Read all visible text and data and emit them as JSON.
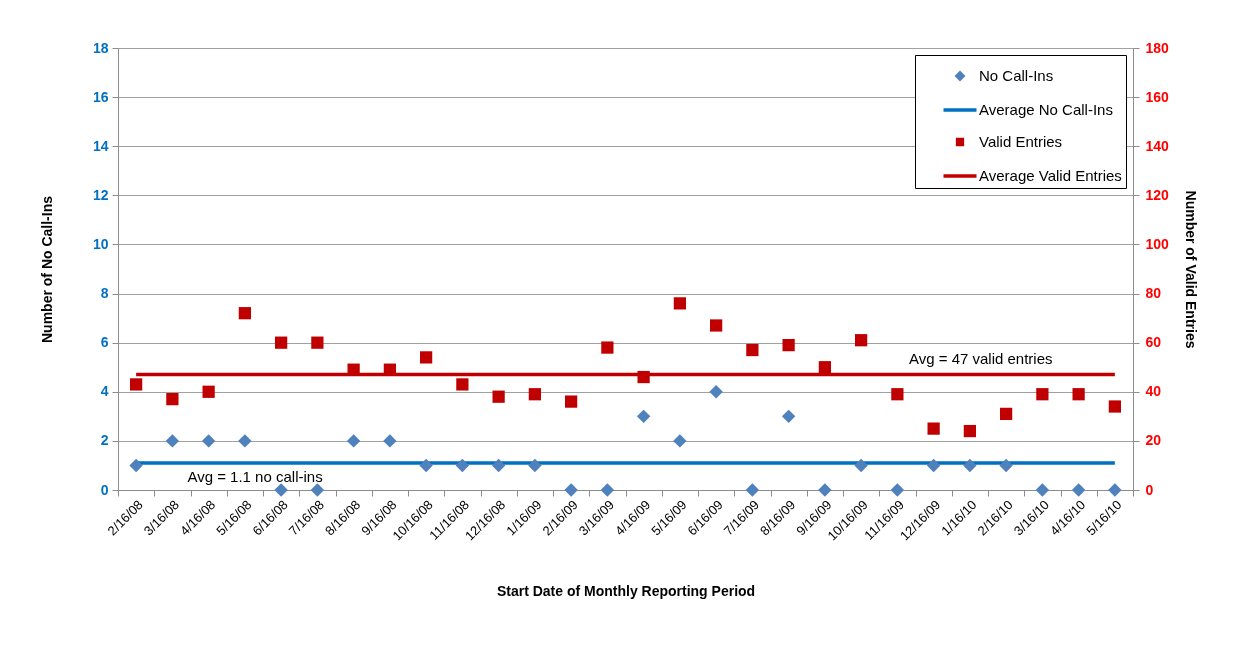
{
  "chart_data": {
    "type": "scatter",
    "categories": [
      "2/16/08",
      "3/16/08",
      "4/16/08",
      "5/16/08",
      "6/16/08",
      "7/16/08",
      "8/16/08",
      "9/16/08",
      "10/16/08",
      "11/16/08",
      "12/16/08",
      "1/16/09",
      "2/16/09",
      "3/16/09",
      "4/16/09",
      "5/16/09",
      "6/16/09",
      "7/16/09",
      "8/16/09",
      "9/16/09",
      "10/16/09",
      "11/16/09",
      "12/16/09",
      "1/16/10",
      "2/16/10",
      "3/16/10",
      "4/16/10",
      "5/16/10"
    ],
    "series": [
      {
        "name": "No Call-Ins",
        "marker": "diamond",
        "color": "#4f81bd",
        "values": [
          1,
          2,
          2,
          2,
          0,
          0,
          2,
          2,
          1,
          1,
          1,
          1,
          0,
          0,
          3,
          2,
          4,
          0,
          3,
          0,
          1,
          0,
          1,
          1,
          1,
          0,
          0,
          0
        ]
      },
      {
        "name": "Average No Call-Ins",
        "type": "line",
        "marker": "none",
        "line_style": "solid",
        "color": "#0070c0",
        "values": [
          1.1,
          1.1,
          1.1,
          1.1,
          1.1,
          1.1,
          1.1,
          1.1,
          1.1,
          1.1,
          1.1,
          1.1,
          1.1,
          1.1,
          1.1,
          1.1,
          1.1,
          1.1,
          1.1,
          1.1,
          1.1,
          1.1,
          1.1,
          1.1,
          1.1,
          1.1,
          1.1,
          1.1
        ]
      },
      {
        "name": "Valid Entries",
        "marker": "square",
        "color": "#c00000",
        "axis": "y2",
        "values": [
          43,
          37,
          40,
          72,
          60,
          60,
          49,
          49,
          54,
          43,
          38,
          39,
          36,
          58,
          46,
          76,
          67,
          57,
          59,
          50,
          61,
          39,
          25,
          24,
          31,
          39,
          39,
          34
        ]
      },
      {
        "name": "Average Valid Entries",
        "type": "line",
        "marker": "none",
        "line_style": "solid",
        "color": "#c00000",
        "axis": "y2",
        "values": [
          47,
          47,
          47,
          47,
          47,
          47,
          47,
          47,
          47,
          47,
          47,
          47,
          47,
          47,
          47,
          47,
          47,
          47,
          47,
          47,
          47,
          47,
          47,
          47,
          47,
          47,
          47,
          47
        ]
      }
    ],
    "xlabel": "Start Date of Monthly Reporting Period",
    "ylabel": "Number of No Call-Ins",
    "y2label": "Number of Valid Entries",
    "ylim": [
      0,
      18
    ],
    "yticks": [
      0,
      2,
      4,
      6,
      8,
      10,
      12,
      14,
      16,
      18
    ],
    "y2lim": [
      0,
      180
    ],
    "y2ticks": [
      0,
      20,
      40,
      60,
      80,
      100,
      120,
      140,
      160,
      180
    ],
    "grid": "y",
    "legend": "top right",
    "annotations": [
      "Avg = 1.1 no call-ins",
      "Avg = 47 valid entries"
    ]
  }
}
